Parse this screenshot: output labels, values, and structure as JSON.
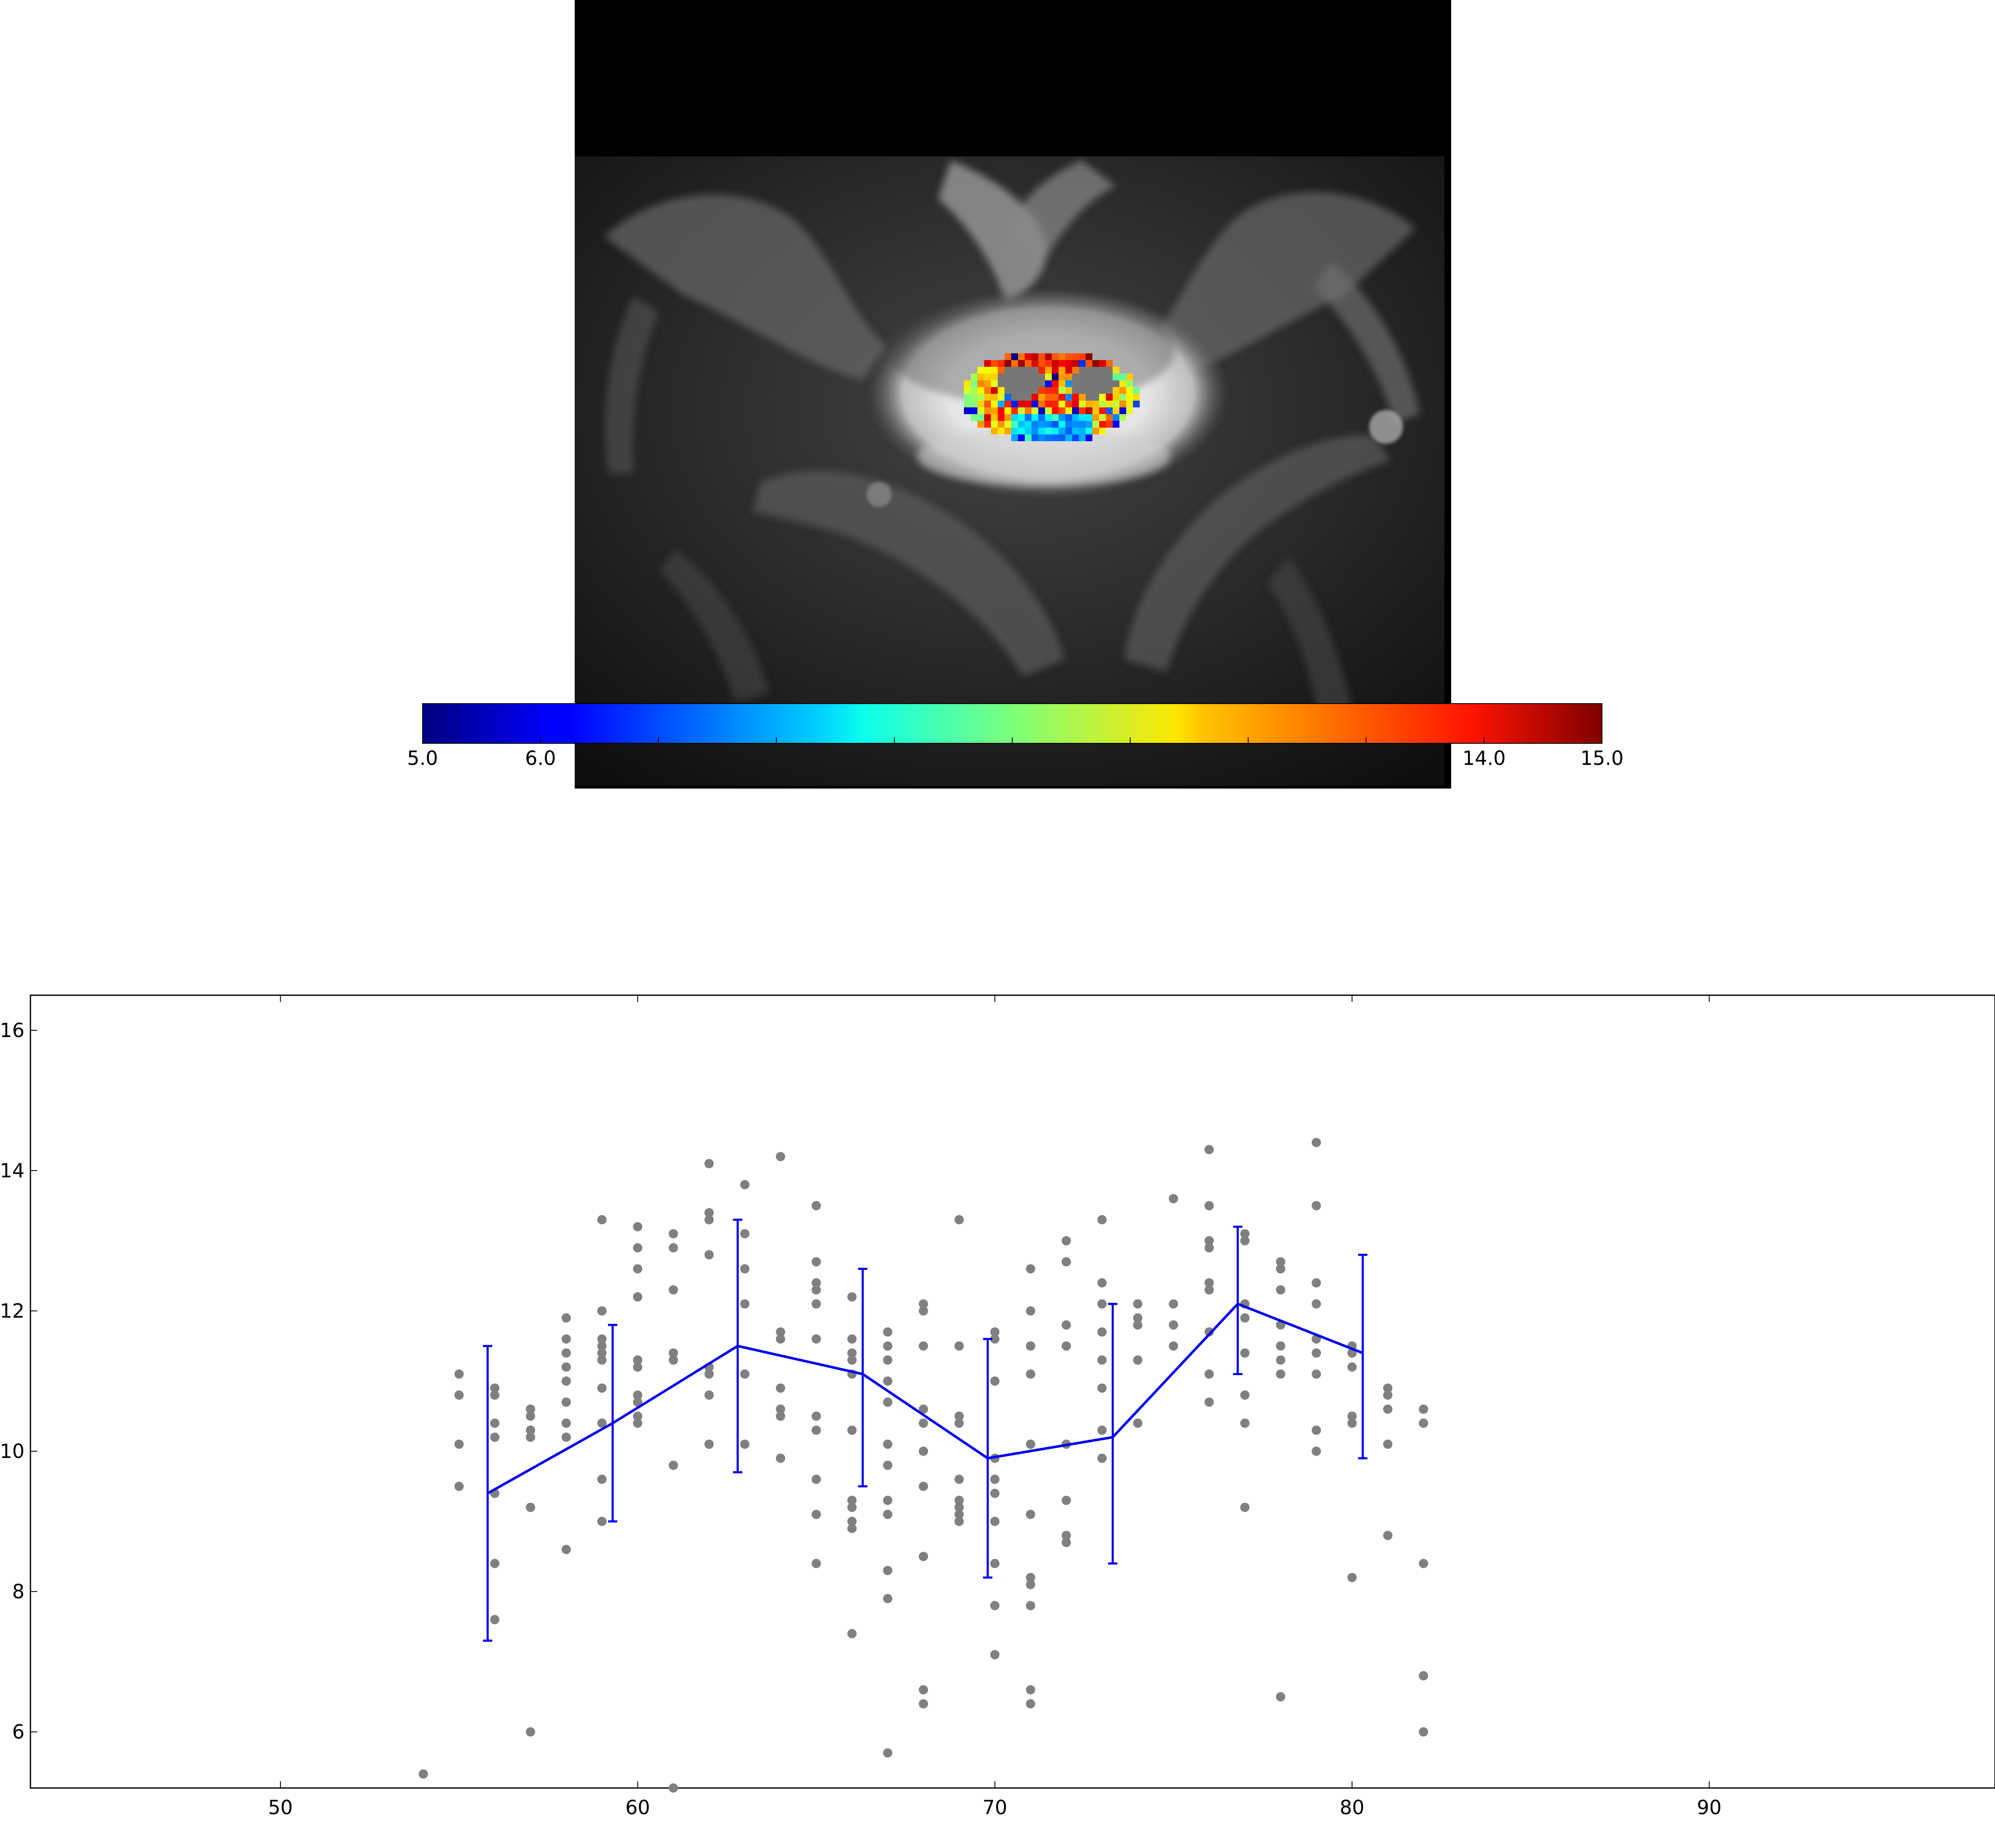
{
  "colorbar": {
    "colormap": "jet",
    "vmin": 5.0,
    "vmax": 15.0,
    "tick_values": [
      5.0,
      6.0,
      14.0,
      15.0
    ],
    "tick_labels": [
      "5.0",
      "6.0",
      "14.0",
      "15.0"
    ]
  },
  "chart_data": {
    "type": "scatter",
    "xlim": [
      43,
      98
    ],
    "ylim": [
      5.2,
      16.5
    ],
    "xticks": [
      50,
      60,
      70,
      80,
      90
    ],
    "xtick_labels": [
      "50",
      "60",
      "70",
      "80",
      "90"
    ],
    "yticks": [
      6,
      8,
      10,
      12,
      14,
      16
    ],
    "ytick_labels": [
      "6",
      "8",
      "10",
      "12",
      "14",
      "16"
    ],
    "grid": false,
    "scatter_color": "#808080",
    "line_color": "#0000ee",
    "points": [
      [
        54,
        5.4
      ],
      [
        55,
        11.1
      ],
      [
        55,
        10.8
      ],
      [
        55,
        10.1
      ],
      [
        55,
        9.5
      ],
      [
        56,
        10.9
      ],
      [
        56,
        10.8
      ],
      [
        56,
        10.4
      ],
      [
        56,
        10.2
      ],
      [
        56,
        9.4
      ],
      [
        56,
        8.4
      ],
      [
        56,
        7.6
      ],
      [
        57,
        10.6
      ],
      [
        57,
        10.5
      ],
      [
        57,
        10.3
      ],
      [
        57,
        10.2
      ],
      [
        57,
        9.2
      ],
      [
        57,
        6.0
      ],
      [
        58,
        11.9
      ],
      [
        58,
        11.6
      ],
      [
        58,
        11.4
      ],
      [
        58,
        11.2
      ],
      [
        58,
        11.0
      ],
      [
        58,
        10.7
      ],
      [
        58,
        10.4
      ],
      [
        58,
        10.2
      ],
      [
        58,
        8.6
      ],
      [
        59,
        13.3
      ],
      [
        59,
        12.0
      ],
      [
        59,
        11.6
      ],
      [
        59,
        11.5
      ],
      [
        59,
        11.4
      ],
      [
        59,
        11.3
      ],
      [
        59,
        10.9
      ],
      [
        59,
        10.4
      ],
      [
        59,
        9.6
      ],
      [
        59,
        9.0
      ],
      [
        60,
        13.2
      ],
      [
        60,
        12.9
      ],
      [
        60,
        12.6
      ],
      [
        60,
        12.2
      ],
      [
        60,
        11.3
      ],
      [
        60,
        11.2
      ],
      [
        60,
        10.8
      ],
      [
        60,
        10.7
      ],
      [
        60,
        10.5
      ],
      [
        60,
        10.4
      ],
      [
        61,
        13.1
      ],
      [
        61,
        12.9
      ],
      [
        61,
        12.3
      ],
      [
        61,
        11.4
      ],
      [
        61,
        11.3
      ],
      [
        61,
        9.8
      ],
      [
        61,
        5.2
      ],
      [
        62,
        14.1
      ],
      [
        62,
        13.4
      ],
      [
        62,
        13.3
      ],
      [
        62,
        12.8
      ],
      [
        62,
        11.2
      ],
      [
        62,
        11.1
      ],
      [
        62,
        10.8
      ],
      [
        62,
        10.1
      ],
      [
        63,
        13.8
      ],
      [
        63,
        13.1
      ],
      [
        63,
        12.6
      ],
      [
        63,
        12.1
      ],
      [
        63,
        11.1
      ],
      [
        63,
        10.1
      ],
      [
        64,
        14.2
      ],
      [
        64,
        11.7
      ],
      [
        64,
        11.6
      ],
      [
        64,
        10.9
      ],
      [
        64,
        10.6
      ],
      [
        64,
        10.5
      ],
      [
        64,
        9.9
      ],
      [
        65,
        13.5
      ],
      [
        65,
        12.7
      ],
      [
        65,
        12.4
      ],
      [
        65,
        12.3
      ],
      [
        65,
        12.1
      ],
      [
        65,
        11.6
      ],
      [
        65,
        10.5
      ],
      [
        65,
        10.3
      ],
      [
        65,
        9.6
      ],
      [
        65,
        9.1
      ],
      [
        65,
        8.4
      ],
      [
        66,
        12.2
      ],
      [
        66,
        11.6
      ],
      [
        66,
        11.4
      ],
      [
        66,
        11.3
      ],
      [
        66,
        11.1
      ],
      [
        66,
        10.3
      ],
      [
        66,
        9.3
      ],
      [
        66,
        9.2
      ],
      [
        66,
        9.0
      ],
      [
        66,
        8.9
      ],
      [
        66,
        7.4
      ],
      [
        67,
        11.7
      ],
      [
        67,
        11.5
      ],
      [
        67,
        11.3
      ],
      [
        67,
        11.0
      ],
      [
        67,
        10.7
      ],
      [
        67,
        10.1
      ],
      [
        67,
        9.8
      ],
      [
        67,
        9.3
      ],
      [
        67,
        9.1
      ],
      [
        67,
        8.3
      ],
      [
        67,
        7.9
      ],
      [
        67,
        5.7
      ],
      [
        68,
        12.1
      ],
      [
        68,
        12.0
      ],
      [
        68,
        11.5
      ],
      [
        68,
        10.6
      ],
      [
        68,
        10.4
      ],
      [
        68,
        10.0
      ],
      [
        68,
        9.5
      ],
      [
        68,
        8.5
      ],
      [
        68,
        6.6
      ],
      [
        68,
        6.4
      ],
      [
        69,
        13.3
      ],
      [
        69,
        11.5
      ],
      [
        69,
        10.5
      ],
      [
        69,
        10.4
      ],
      [
        69,
        9.6
      ],
      [
        69,
        9.3
      ],
      [
        69,
        9.2
      ],
      [
        69,
        9.1
      ],
      [
        69,
        9.0
      ],
      [
        70,
        11.7
      ],
      [
        70,
        11.6
      ],
      [
        70,
        11.0
      ],
      [
        70,
        9.9
      ],
      [
        70,
        9.6
      ],
      [
        70,
        9.4
      ],
      [
        70,
        9.0
      ],
      [
        70,
        8.4
      ],
      [
        70,
        7.8
      ],
      [
        70,
        7.1
      ],
      [
        71,
        12.6
      ],
      [
        71,
        12.0
      ],
      [
        71,
        11.5
      ],
      [
        71,
        11.1
      ],
      [
        71,
        10.1
      ],
      [
        71,
        9.1
      ],
      [
        71,
        8.2
      ],
      [
        71,
        8.1
      ],
      [
        71,
        7.8
      ],
      [
        71,
        6.6
      ],
      [
        71,
        6.4
      ],
      [
        72,
        13.0
      ],
      [
        72,
        12.7
      ],
      [
        72,
        11.8
      ],
      [
        72,
        11.5
      ],
      [
        72,
        10.1
      ],
      [
        72,
        9.3
      ],
      [
        72,
        8.8
      ],
      [
        72,
        8.7
      ],
      [
        73,
        13.3
      ],
      [
        73,
        12.4
      ],
      [
        73,
        12.1
      ],
      [
        73,
        11.7
      ],
      [
        73,
        11.3
      ],
      [
        73,
        10.9
      ],
      [
        73,
        10.3
      ],
      [
        73,
        9.9
      ],
      [
        74,
        12.1
      ],
      [
        74,
        11.9
      ],
      [
        74,
        11.8
      ],
      [
        74,
        11.3
      ],
      [
        74,
        10.4
      ],
      [
        75,
        13.6
      ],
      [
        75,
        12.1
      ],
      [
        75,
        11.8
      ],
      [
        75,
        11.5
      ],
      [
        76,
        14.3
      ],
      [
        76,
        13.5
      ],
      [
        76,
        13.0
      ],
      [
        76,
        12.9
      ],
      [
        76,
        12.4
      ],
      [
        76,
        12.3
      ],
      [
        76,
        11.7
      ],
      [
        76,
        11.1
      ],
      [
        76,
        10.7
      ],
      [
        77,
        13.1
      ],
      [
        77,
        13.0
      ],
      [
        77,
        12.1
      ],
      [
        77,
        11.9
      ],
      [
        77,
        11.4
      ],
      [
        77,
        10.8
      ],
      [
        77,
        10.4
      ],
      [
        77,
        9.2
      ],
      [
        78,
        12.7
      ],
      [
        78,
        12.6
      ],
      [
        78,
        12.3
      ],
      [
        78,
        11.8
      ],
      [
        78,
        11.5
      ],
      [
        78,
        11.3
      ],
      [
        78,
        11.1
      ],
      [
        78,
        6.5
      ],
      [
        79,
        14.4
      ],
      [
        79,
        13.5
      ],
      [
        79,
        12.4
      ],
      [
        79,
        12.1
      ],
      [
        79,
        11.6
      ],
      [
        79,
        11.4
      ],
      [
        79,
        11.1
      ],
      [
        79,
        10.3
      ],
      [
        79,
        10.0
      ],
      [
        80,
        11.5
      ],
      [
        80,
        11.4
      ],
      [
        80,
        11.2
      ],
      [
        80,
        10.5
      ],
      [
        80,
        10.4
      ],
      [
        80,
        8.2
      ],
      [
        81,
        10.9
      ],
      [
        81,
        10.8
      ],
      [
        81,
        10.6
      ],
      [
        81,
        10.1
      ],
      [
        81,
        8.8
      ],
      [
        82,
        10.6
      ],
      [
        82,
        10.4
      ],
      [
        82,
        8.4
      ],
      [
        82,
        6.8
      ],
      [
        82,
        6.0
      ]
    ],
    "series": [
      {
        "x": [
          55.8,
          59.3,
          62.8,
          66.3,
          69.8,
          73.3,
          76.8,
          80.3
        ],
        "y": [
          9.4,
          10.4,
          11.5,
          11.1,
          9.9,
          10.2,
          12.1,
          11.4
        ],
        "err_low": [
          7.3,
          9.0,
          9.7,
          9.5,
          8.2,
          8.4,
          11.1,
          9.9
        ],
        "err_high": [
          11.5,
          11.8,
          13.3,
          12.6,
          11.6,
          12.1,
          13.2,
          12.8
        ]
      }
    ]
  }
}
